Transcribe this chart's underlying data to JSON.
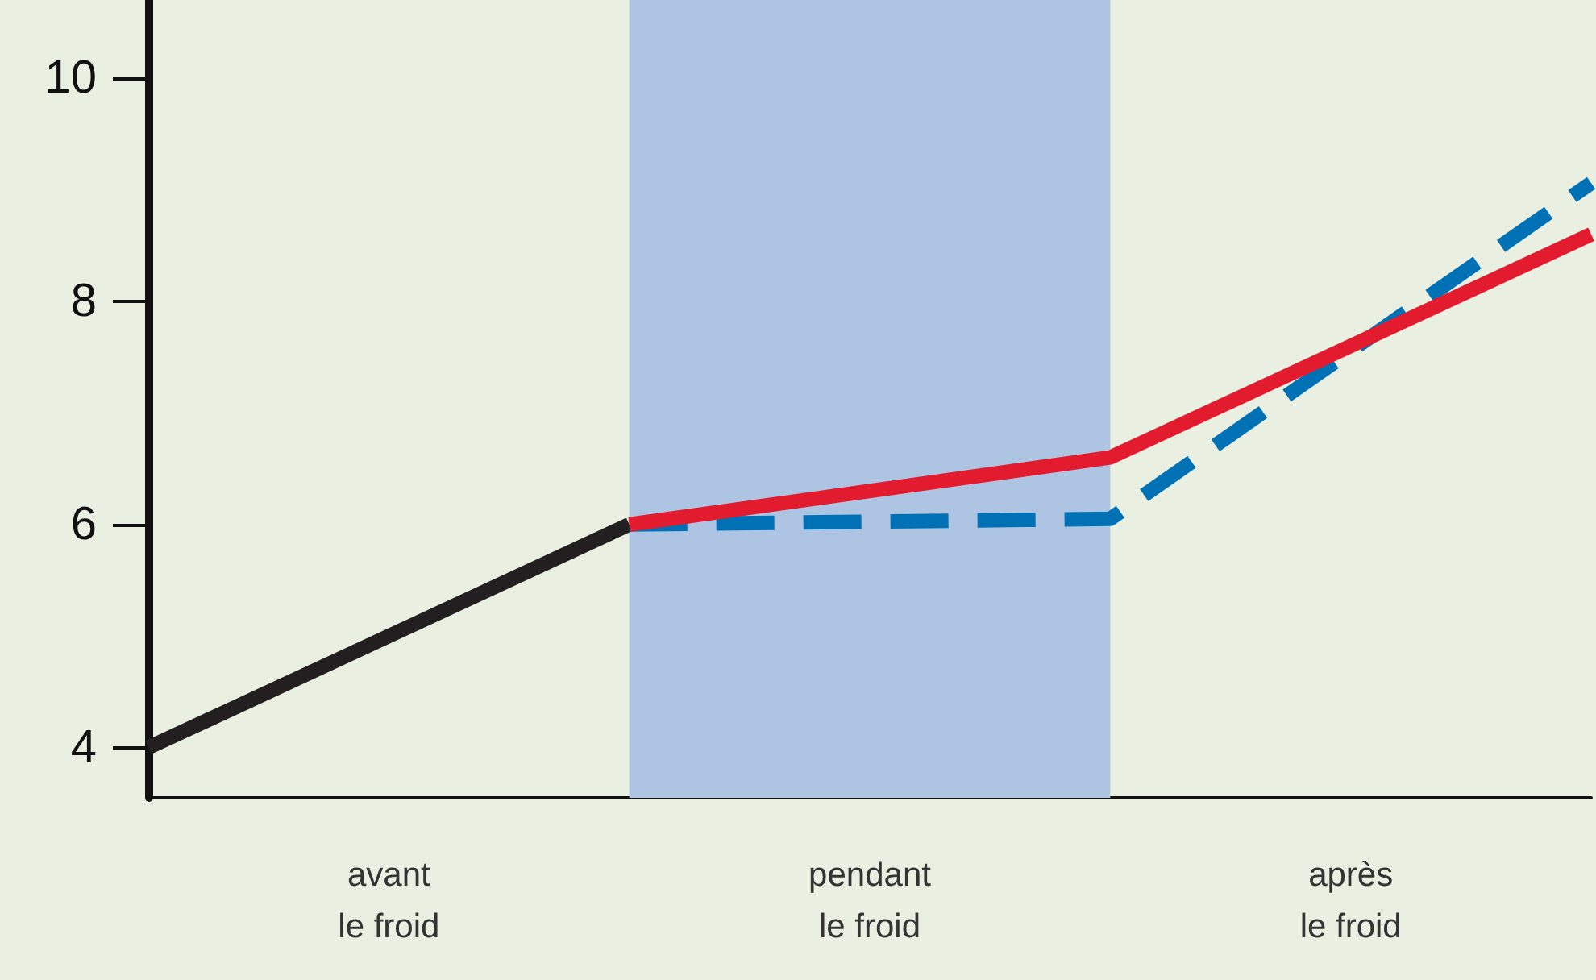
{
  "chart_data": {
    "type": "line",
    "categories": [
      null,
      "avant\nle froid",
      null,
      "pendant\nle froid",
      null,
      "après\nle froid",
      null
    ],
    "ylim": [
      3.55,
      10.7
    ],
    "yticks": [
      4,
      6,
      8,
      10
    ],
    "grid": false,
    "marker": "none",
    "series": [
      {
        "color": "#231f20",
        "values": [
          4,
          null,
          6,
          null,
          null,
          null,
          null
        ],
        "line_style": "solid"
      },
      {
        "color": "#0071b5",
        "values": [
          null,
          null,
          6,
          null,
          6.05,
          null,
          9.06
        ],
        "line_style": "dashed"
      },
      {
        "color": "#e31b2f",
        "values": [
          null,
          null,
          6,
          null,
          6.6,
          null,
          8.6
        ],
        "line_style": "solid"
      }
    ]
  }
}
